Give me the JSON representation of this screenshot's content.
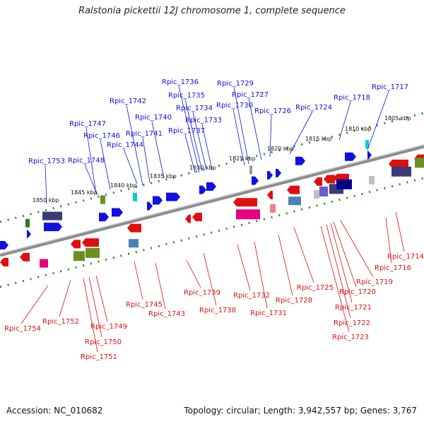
{
  "title": "Ralstonia pickettii 12J chromosome 1, complete sequence",
  "footer": {
    "accession": "Accession: NC_010682",
    "info": "Topology: circular; Length: 3,942,557 bp; Genes: 3,767"
  },
  "colors": {
    "forward": "#1010e0",
    "reverse": "#e01010",
    "backbone": "#8c8c8c",
    "tick": "#2e8b2e"
  },
  "scale_labels": [
    "1805 kbp",
    "1810 kbp",
    "1815 kbp",
    "1820 kbp",
    "1825 kbp",
    "1830 kbp",
    "1835 kbp",
    "1840 kbp",
    "1845 kbp",
    "1850 kbp"
  ],
  "top_genes": [
    {
      "label": "Rpic_1717"
    },
    {
      "label": "Rpic_1718"
    },
    {
      "label": "Rpic_1724"
    },
    {
      "label": "Rpic_1726"
    },
    {
      "label": "Rpic_1727"
    },
    {
      "label": "Rpic_1729"
    },
    {
      "label": "Rpic_1730"
    },
    {
      "label": "Rpic_1733"
    },
    {
      "label": "Rpic_1734"
    },
    {
      "label": "Rpic_1735"
    },
    {
      "label": "Rpic_1736"
    },
    {
      "label": "Rpic_1737"
    },
    {
      "label": "Rpic_1740"
    },
    {
      "label": "Rpic_1741"
    },
    {
      "label": "Rpic_1742"
    },
    {
      "label": "Rpic_1744"
    },
    {
      "label": "Rpic_1746"
    },
    {
      "label": "Rpic_1747"
    },
    {
      "label": "Rpic_1748"
    },
    {
      "label": "Rpic_1753"
    }
  ],
  "bottom_genes": [
    {
      "label": "Rpic_1714"
    },
    {
      "label": "Rpic_1716"
    },
    {
      "label": "Rpic_1719"
    },
    {
      "label": "Rpic_1720"
    },
    {
      "label": "Rpic_1721"
    },
    {
      "label": "Rpic_1722"
    },
    {
      "label": "Rpic_1723"
    },
    {
      "label": "Rpic_1725"
    },
    {
      "label": "Rpic_1728"
    },
    {
      "label": "Rpic_1731"
    },
    {
      "label": "Rpic_1732"
    },
    {
      "label": "Rpic_1738"
    },
    {
      "label": "Rpic_1739"
    },
    {
      "label": "Rpic_1743"
    },
    {
      "label": "Rpic_1745"
    },
    {
      "label": "Rpic_1749"
    },
    {
      "label": "Rpic_1750"
    },
    {
      "label": "Rpic_1751"
    },
    {
      "label": "Rpic_1752"
    },
    {
      "label": "Rpic_1754"
    }
  ]
}
